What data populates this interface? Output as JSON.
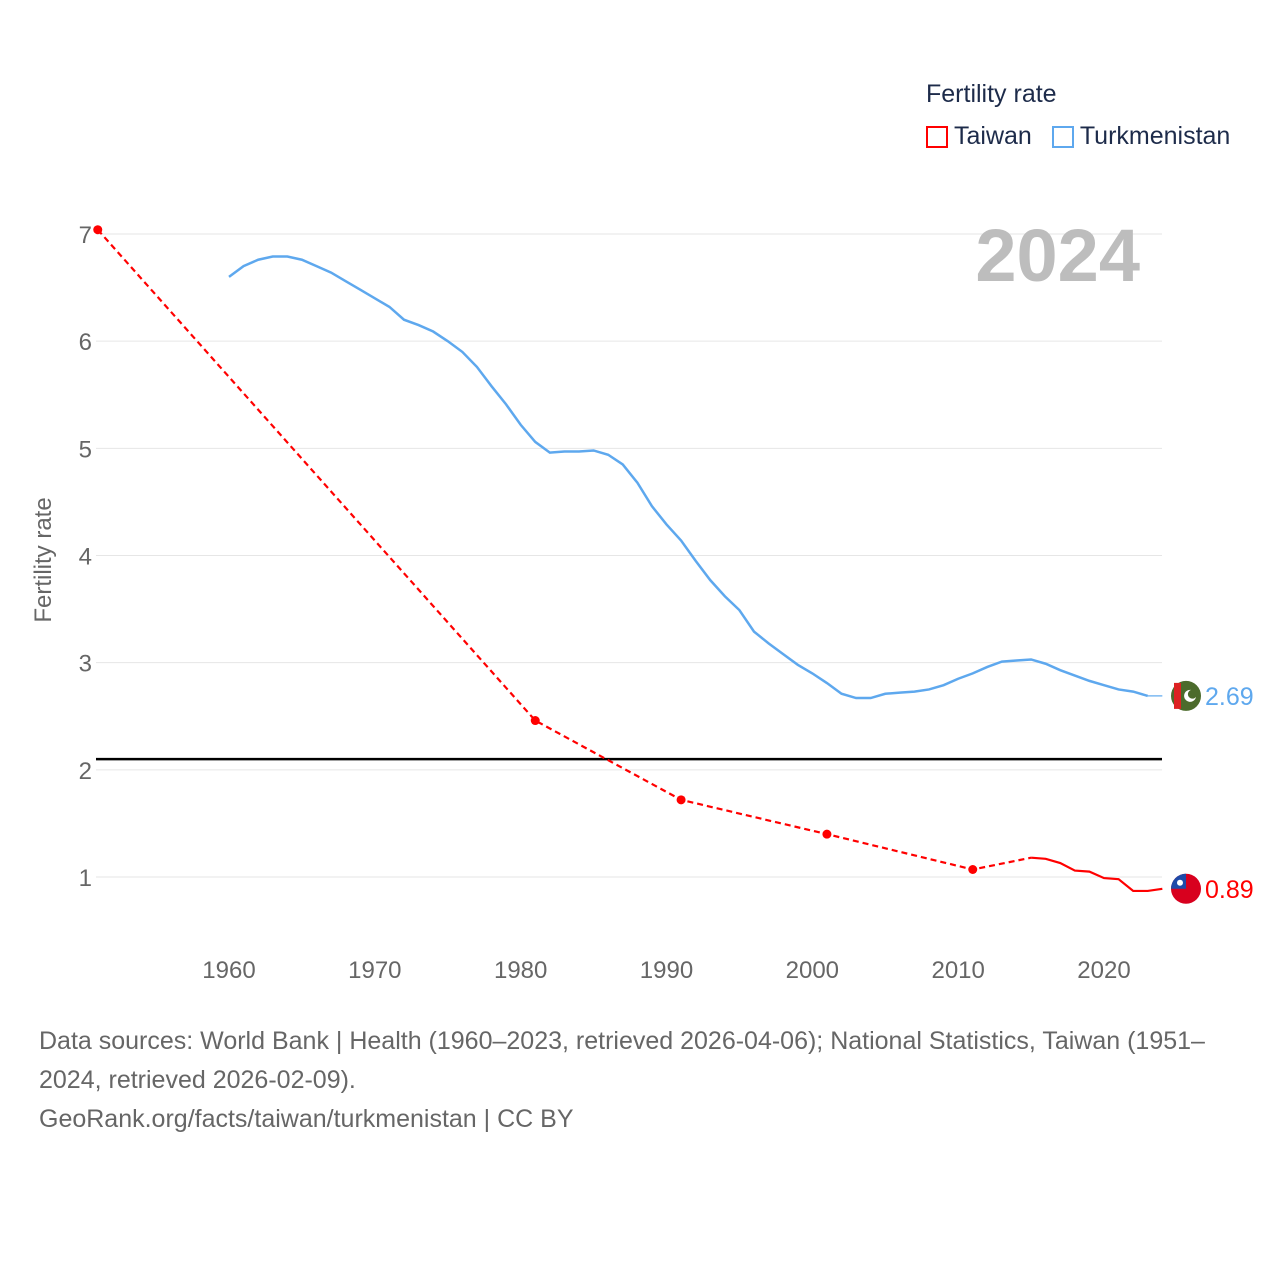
{
  "chart_data": {
    "type": "line",
    "title": "",
    "year_label": "2024",
    "xlabel": "",
    "ylabel": "Fertility rate",
    "xlim": [
      1951,
      2024
    ],
    "ylim": [
      0.3,
      7.2
    ],
    "x_ticks": [
      1960,
      1970,
      1980,
      1990,
      2000,
      2010,
      2020
    ],
    "y_ticks": [
      1,
      2,
      3,
      4,
      5,
      6,
      7
    ],
    "grid": true,
    "reference_line": 2.1,
    "legend": {
      "title": "Fertility rate",
      "placement": "top-right"
    },
    "series": [
      {
        "name": "Taiwan",
        "color": "#ff0000",
        "end_label": "0.89",
        "flag": "taiwan-flag",
        "x": [
          1951,
          1981,
          1991,
          2001,
          2011,
          2015,
          2016,
          2017,
          2018,
          2019,
          2020,
          2021,
          2022,
          2023,
          2024
        ],
        "y": [
          7.04,
          2.46,
          1.72,
          1.4,
          1.07,
          1.18,
          1.17,
          1.13,
          1.06,
          1.05,
          0.99,
          0.98,
          0.87,
          0.87,
          0.89
        ],
        "dashed_until": 2015
      },
      {
        "name": "Turkmenistan",
        "color": "#5ea8ee",
        "end_label": "2.69",
        "flag": "turkmenistan-flag",
        "x": [
          1960,
          1961,
          1962,
          1963,
          1964,
          1965,
          1966,
          1967,
          1968,
          1969,
          1970,
          1971,
          1972,
          1973,
          1974,
          1975,
          1976,
          1977,
          1978,
          1979,
          1980,
          1981,
          1982,
          1983,
          1984,
          1985,
          1986,
          1987,
          1988,
          1989,
          1990,
          1991,
          1992,
          1993,
          1994,
          1995,
          1996,
          1997,
          1998,
          1999,
          2000,
          2001,
          2002,
          2003,
          2004,
          2005,
          2006,
          2007,
          2008,
          2009,
          2010,
          2011,
          2012,
          2013,
          2014,
          2015,
          2016,
          2017,
          2018,
          2019,
          2020,
          2021,
          2022,
          2023,
          2024
        ],
        "y": [
          6.6,
          6.7,
          6.76,
          6.79,
          6.79,
          6.76,
          6.7,
          6.64,
          6.56,
          6.48,
          6.4,
          6.32,
          6.2,
          6.15,
          6.09,
          6.0,
          5.9,
          5.76,
          5.58,
          5.41,
          5.22,
          5.06,
          4.96,
          4.97,
          4.97,
          4.98,
          4.94,
          4.85,
          4.68,
          4.46,
          4.29,
          4.14,
          3.95,
          3.77,
          3.62,
          3.49,
          3.29,
          3.18,
          3.08,
          2.98,
          2.9,
          2.81,
          2.71,
          2.67,
          2.67,
          2.71,
          2.72,
          2.73,
          2.75,
          2.79,
          2.85,
          2.9,
          2.96,
          3.01,
          3.02,
          3.03,
          2.99,
          2.93,
          2.88,
          2.83,
          2.79,
          2.75,
          2.73,
          2.69,
          2.69
        ]
      }
    ]
  },
  "footer": {
    "source": "Data sources: World Bank | Health (1960–2023, retrieved 2026-04-06); National Statistics, Taiwan (1951–2024, retrieved 2026-02-09).",
    "link": "GeoRank.org/facts/taiwan/turkmenistan | CC BY"
  }
}
